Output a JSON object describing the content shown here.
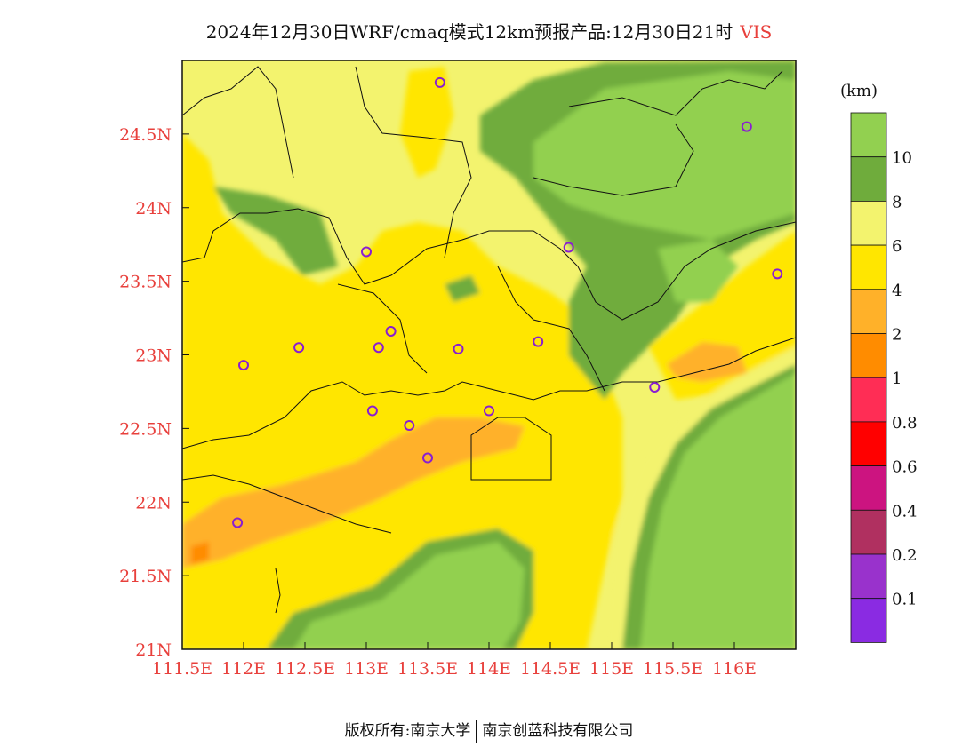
{
  "title": {
    "text": "2024年12月30日WRF/cmaq模式12km预报产品:12月30日21时",
    "variable": "VIS"
  },
  "map": {
    "lon_range": [
      111.5,
      116.5
    ],
    "lat_range": [
      21.0,
      25.0
    ],
    "lon_ticks": [
      "111.5E",
      "112E",
      "112.5E",
      "113E",
      "113.5E",
      "114E",
      "114.5E",
      "115E",
      "115.5E",
      "116E"
    ],
    "lat_ticks": [
      "21N",
      "21.5N",
      "22N",
      "22.5N",
      "23N",
      "23.5N",
      "24N",
      "24.5N"
    ],
    "label_color": "#e8403c"
  },
  "stations": [
    {
      "lon": 113.6,
      "lat": 24.85
    },
    {
      "lon": 116.1,
      "lat": 24.55
    },
    {
      "lon": 113.0,
      "lat": 23.7
    },
    {
      "lon": 114.65,
      "lat": 23.73
    },
    {
      "lon": 116.35,
      "lat": 23.55
    },
    {
      "lon": 112.0,
      "lat": 22.93
    },
    {
      "lon": 112.45,
      "lat": 23.05
    },
    {
      "lon": 113.1,
      "lat": 23.05
    },
    {
      "lon": 113.2,
      "lat": 23.16
    },
    {
      "lon": 113.75,
      "lat": 23.04
    },
    {
      "lon": 114.4,
      "lat": 23.09
    },
    {
      "lon": 115.35,
      "lat": 22.78
    },
    {
      "lon": 113.05,
      "lat": 22.62
    },
    {
      "lon": 113.35,
      "lat": 22.52
    },
    {
      "lon": 114.0,
      "lat": 22.62
    },
    {
      "lon": 113.5,
      "lat": 22.3
    },
    {
      "lon": 111.95,
      "lat": 21.86
    }
  ],
  "legend": {
    "unit": "(km)",
    "levels": [
      {
        "label": "",
        "color": "#92d050"
      },
      {
        "label": "10",
        "color": "#6fac3c"
      },
      {
        "label": "8",
        "color": "#f3f36e"
      },
      {
        "label": "6",
        "color": "#ffe600"
      },
      {
        "label": "4",
        "color": "#ffb129"
      },
      {
        "label": "2",
        "color": "#ff8c00"
      },
      {
        "label": "1",
        "color": "#ff2d55"
      },
      {
        "label": "0.8",
        "color": "#ff0000"
      },
      {
        "label": "0.6",
        "color": "#cc1480"
      },
      {
        "label": "0.4",
        "color": "#b03060"
      },
      {
        "label": "0.2",
        "color": "#9932cc"
      },
      {
        "label": "0.1",
        "color": "#8a2be2"
      }
    ]
  },
  "footer": {
    "left": "版权所有:南京大学",
    "right": "南京创蓝科技有限公司"
  }
}
